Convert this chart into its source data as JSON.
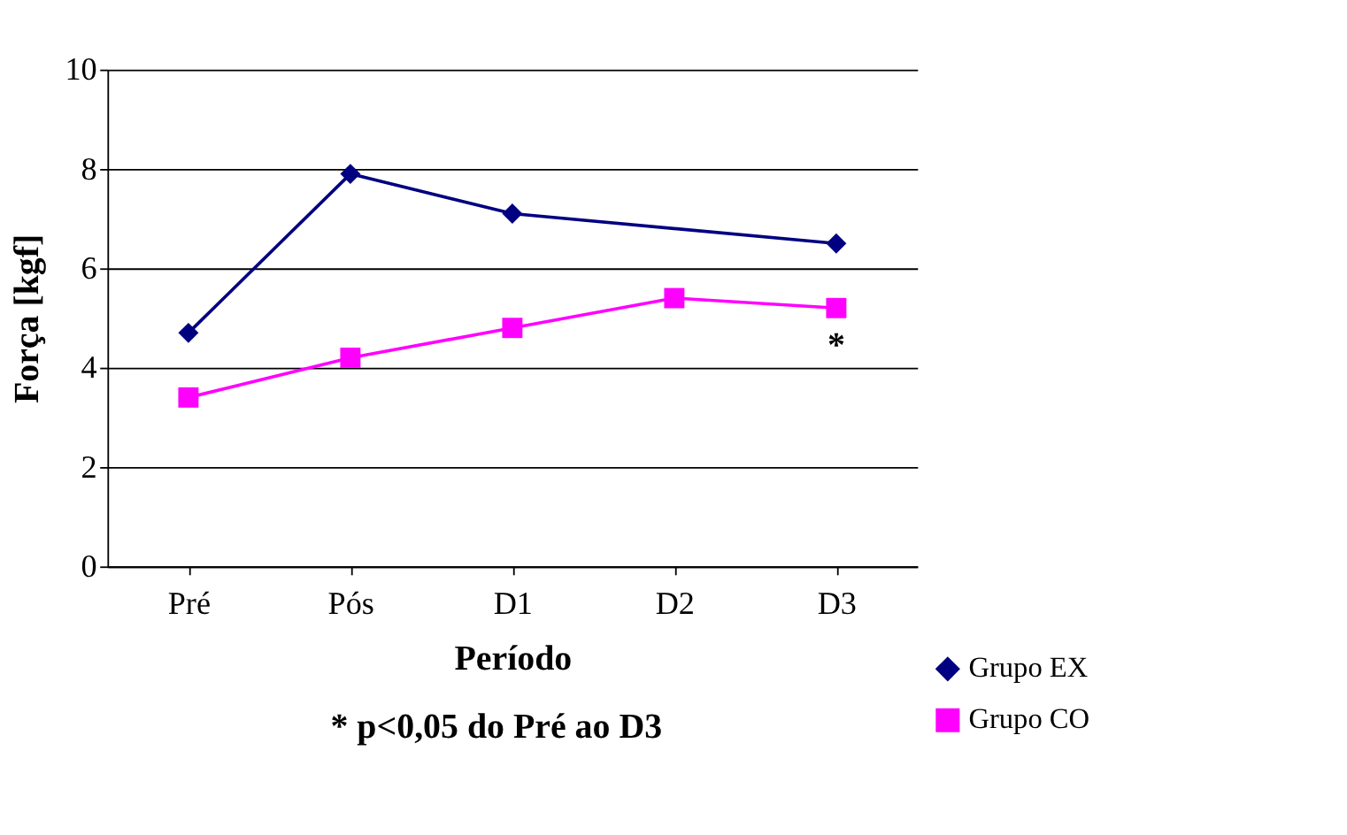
{
  "chart_data": {
    "type": "line",
    "xlabel": "Período",
    "ylabel": "Força [kgf]",
    "categories": [
      "Pré",
      "Pós",
      "D1",
      "D2",
      "D3"
    ],
    "series": [
      {
        "name": "Grupo EX",
        "color": "#000080",
        "marker": "diamond",
        "values": [
          4.7,
          7.9,
          7.1,
          null,
          6.5
        ]
      },
      {
        "name": "Grupo CO",
        "color": "#ff00ff",
        "marker": "square",
        "values": [
          3.4,
          4.2,
          4.8,
          5.4,
          5.2
        ]
      }
    ],
    "ylim": [
      0,
      10
    ],
    "yticks": [
      0,
      2,
      4,
      6,
      8,
      10
    ],
    "grid": "y",
    "legend": "bottom right",
    "annotations": [
      "*",
      "* p<0,05 do Pré ao D3"
    ]
  }
}
